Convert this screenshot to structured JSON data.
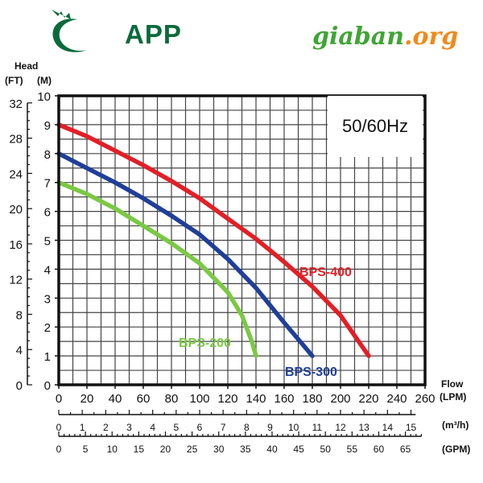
{
  "brand": {
    "logo_text": "APP",
    "watermark_main": "giaban",
    "watermark_ext": ".org"
  },
  "colors": {
    "bps_200": "#7ac943",
    "bps_300": "#1f3f99",
    "bps_400": "#e21f26",
    "brand_green": "#0a6b3a",
    "grid": "#555555",
    "frame": "#111111"
  },
  "chart_data": {
    "type": "line",
    "frequency_label": "50/60Hz",
    "left_axis": {
      "title_line1": "Head",
      "unit_ft": "(FT)",
      "unit_m": "(M)",
      "m_ticks": [
        0,
        1,
        2,
        3,
        4,
        5,
        6,
        7,
        8,
        9,
        10
      ],
      "ft_ticks": [
        0,
        4,
        8,
        12,
        16,
        20,
        24,
        28,
        32
      ],
      "ylim_m": [
        0,
        10
      ]
    },
    "bottom_axis": {
      "title": "Flow",
      "unit_lpm": "(LPM)",
      "lpm_ticks": [
        0,
        20,
        40,
        60,
        80,
        100,
        120,
        140,
        160,
        180,
        200,
        220,
        240,
        260
      ],
      "xlim_lpm": [
        0,
        260
      ],
      "m3h_unit": "(m³/h)",
      "m3h_ticks": [
        0,
        1,
        2,
        3,
        4,
        5,
        6,
        7,
        8,
        9,
        10,
        11,
        12,
        13,
        14,
        15
      ],
      "gpm_unit": "(GPM)",
      "gpm_ticks": [
        0,
        5,
        10,
        15,
        20,
        25,
        30,
        35,
        40,
        45,
        50,
        55,
        60,
        65
      ]
    },
    "grid": true,
    "series": [
      {
        "name": "BPS-200",
        "color": "#7ac943",
        "points": [
          [
            0,
            7
          ],
          [
            20,
            6.6
          ],
          [
            40,
            6.1
          ],
          [
            60,
            5.5
          ],
          [
            80,
            4.9
          ],
          [
            100,
            4.2
          ],
          [
            120,
            3.2
          ],
          [
            130,
            2.4
          ],
          [
            137,
            1.5
          ],
          [
            140,
            1
          ]
        ]
      },
      {
        "name": "BPS-300",
        "color": "#1f3f99",
        "points": [
          [
            0,
            8
          ],
          [
            20,
            7.5
          ],
          [
            40,
            7
          ],
          [
            60,
            6.45
          ],
          [
            80,
            5.85
          ],
          [
            100,
            5.2
          ],
          [
            120,
            4.35
          ],
          [
            140,
            3.35
          ],
          [
            160,
            2.15
          ],
          [
            180,
            1
          ]
        ]
      },
      {
        "name": "BPS-400",
        "color": "#e21f26",
        "points": [
          [
            0,
            9
          ],
          [
            20,
            8.6
          ],
          [
            40,
            8.1
          ],
          [
            60,
            7.6
          ],
          [
            80,
            7.05
          ],
          [
            100,
            6.45
          ],
          [
            120,
            5.75
          ],
          [
            140,
            5.05
          ],
          [
            160,
            4.25
          ],
          [
            180,
            3.4
          ],
          [
            200,
            2.4
          ],
          [
            220,
            1
          ]
        ]
      }
    ]
  }
}
